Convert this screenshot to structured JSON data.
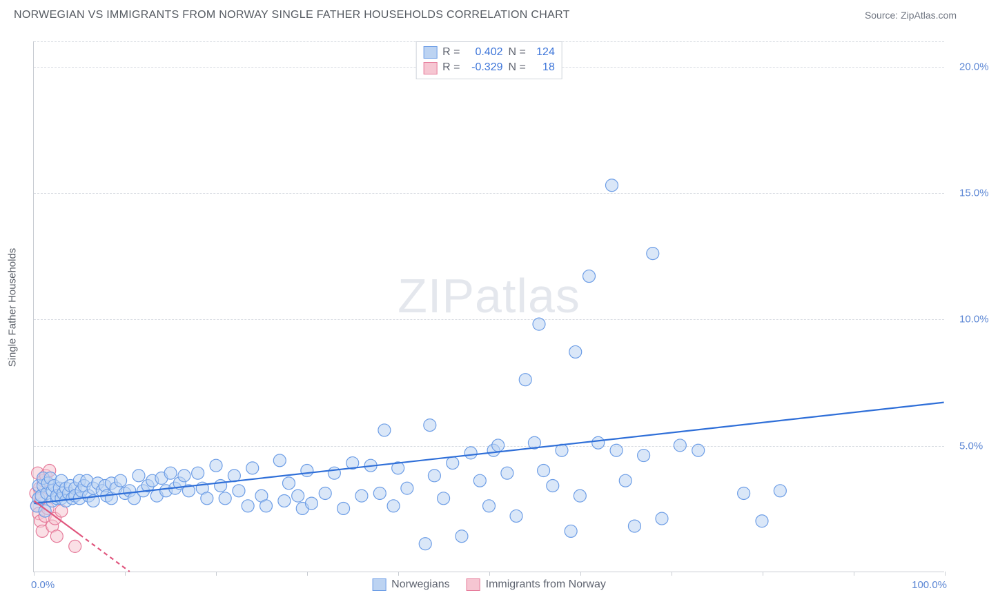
{
  "title": "NORWEGIAN VS IMMIGRANTS FROM NORWAY SINGLE FATHER HOUSEHOLDS CORRELATION CHART",
  "source": "Source: ZipAtlas.com",
  "y_axis_label": "Single Father Households",
  "watermark": {
    "zip": "ZIP",
    "atlas": "atlas"
  },
  "chart": {
    "type": "scatter",
    "background_color": "#ffffff",
    "grid_color": "#d8dce2",
    "axis_color": "#c8ccd2",
    "tick_color": "#5b86d4",
    "xlim": [
      0,
      100
    ],
    "ylim": [
      0,
      21
    ],
    "x_ticks": [
      0,
      10,
      20,
      30,
      40,
      50,
      60,
      70,
      80,
      90,
      100
    ],
    "y_ticks": [
      5,
      10,
      15,
      20
    ],
    "y_tick_labels": [
      "5.0%",
      "10.0%",
      "15.0%",
      "20.0%"
    ],
    "x_origin_label": "0.0%",
    "x_max_label": "100.0%",
    "marker_radius": 9,
    "marker_stroke_width": 1.2,
    "line_width": 2.2,
    "series": [
      {
        "id": "norwegians",
        "label": "Norwegians",
        "fill": "#bcd3f2",
        "stroke": "#6c9de6",
        "fill_opacity": 0.55,
        "r_value": "0.402",
        "n_value": "124",
        "trend": {
          "x1": 0,
          "y1": 2.7,
          "x2": 100,
          "y2": 6.7,
          "color": "#2f6fd8",
          "dash": null
        },
        "points": [
          [
            0.3,
            2.6
          ],
          [
            0.5,
            2.9
          ],
          [
            0.5,
            3.4
          ],
          [
            0.8,
            3.0
          ],
          [
            1.0,
            3.4
          ],
          [
            1.0,
            3.7
          ],
          [
            1.2,
            2.4
          ],
          [
            1.4,
            3.1
          ],
          [
            1.5,
            3.5
          ],
          [
            1.8,
            3.7
          ],
          [
            2.0,
            2.8
          ],
          [
            2.0,
            3.2
          ],
          [
            2.2,
            3.4
          ],
          [
            2.5,
            2.9
          ],
          [
            2.5,
            3.0
          ],
          [
            2.8,
            3.3
          ],
          [
            3.0,
            3.6
          ],
          [
            3.0,
            2.9
          ],
          [
            3.2,
            3.1
          ],
          [
            3.5,
            2.8
          ],
          [
            3.5,
            3.3
          ],
          [
            3.8,
            3.1
          ],
          [
            4.0,
            3.4
          ],
          [
            4.2,
            2.9
          ],
          [
            4.5,
            3.3
          ],
          [
            4.5,
            3.0
          ],
          [
            5.0,
            3.6
          ],
          [
            5.0,
            2.9
          ],
          [
            5.2,
            3.2
          ],
          [
            5.5,
            3.4
          ],
          [
            5.8,
            3.6
          ],
          [
            6.0,
            3.0
          ],
          [
            6.5,
            3.3
          ],
          [
            6.5,
            2.8
          ],
          [
            7.0,
            3.5
          ],
          [
            7.5,
            3.2
          ],
          [
            7.8,
            3.4
          ],
          [
            8.0,
            3.0
          ],
          [
            8.5,
            3.5
          ],
          [
            8.5,
            2.9
          ],
          [
            9.0,
            3.3
          ],
          [
            9.5,
            3.6
          ],
          [
            10.0,
            3.1
          ],
          [
            10.5,
            3.2
          ],
          [
            11.0,
            2.9
          ],
          [
            11.5,
            3.8
          ],
          [
            12.0,
            3.2
          ],
          [
            12.5,
            3.4
          ],
          [
            13.0,
            3.6
          ],
          [
            13.5,
            3.0
          ],
          [
            14.0,
            3.7
          ],
          [
            14.5,
            3.2
          ],
          [
            15.0,
            3.9
          ],
          [
            15.5,
            3.3
          ],
          [
            16.0,
            3.5
          ],
          [
            16.5,
            3.8
          ],
          [
            17.0,
            3.2
          ],
          [
            18.0,
            3.9
          ],
          [
            18.5,
            3.3
          ],
          [
            19.0,
            2.9
          ],
          [
            20.0,
            4.2
          ],
          [
            20.5,
            3.4
          ],
          [
            21.0,
            2.9
          ],
          [
            22.0,
            3.8
          ],
          [
            22.5,
            3.2
          ],
          [
            23.5,
            2.6
          ],
          [
            24.0,
            4.1
          ],
          [
            25.0,
            3.0
          ],
          [
            25.5,
            2.6
          ],
          [
            27.0,
            4.4
          ],
          [
            27.5,
            2.8
          ],
          [
            28.0,
            3.5
          ],
          [
            29.0,
            3.0
          ],
          [
            29.5,
            2.5
          ],
          [
            30.0,
            4.0
          ],
          [
            30.5,
            2.7
          ],
          [
            32.0,
            3.1
          ],
          [
            33.0,
            3.9
          ],
          [
            34.0,
            2.5
          ],
          [
            35.0,
            4.3
          ],
          [
            36.0,
            3.0
          ],
          [
            37.0,
            4.2
          ],
          [
            38.0,
            3.1
          ],
          [
            38.5,
            5.6
          ],
          [
            39.5,
            2.6
          ],
          [
            40.0,
            4.1
          ],
          [
            41.0,
            3.3
          ],
          [
            43.0,
            1.1
          ],
          [
            43.5,
            5.8
          ],
          [
            44.0,
            3.8
          ],
          [
            45.0,
            2.9
          ],
          [
            46.0,
            4.3
          ],
          [
            47.0,
            1.4
          ],
          [
            48.0,
            4.7
          ],
          [
            49.0,
            3.6
          ],
          [
            50.0,
            2.6
          ],
          [
            50.5,
            4.8
          ],
          [
            51.0,
            5.0
          ],
          [
            52.0,
            3.9
          ],
          [
            53.0,
            2.2
          ],
          [
            54.0,
            7.6
          ],
          [
            55.0,
            5.1
          ],
          [
            55.5,
            9.8
          ],
          [
            56.0,
            4.0
          ],
          [
            57.0,
            3.4
          ],
          [
            58.0,
            4.8
          ],
          [
            59.0,
            1.6
          ],
          [
            59.5,
            8.7
          ],
          [
            60.0,
            3.0
          ],
          [
            61.0,
            11.7
          ],
          [
            62.0,
            5.1
          ],
          [
            63.5,
            15.3
          ],
          [
            64.0,
            4.8
          ],
          [
            65.0,
            3.6
          ],
          [
            66.0,
            1.8
          ],
          [
            67.0,
            4.6
          ],
          [
            68.0,
            12.6
          ],
          [
            69.0,
            2.1
          ],
          [
            71.0,
            5.0
          ],
          [
            73.0,
            4.8
          ],
          [
            78.0,
            3.1
          ],
          [
            80.0,
            2.0
          ],
          [
            82.0,
            3.2
          ]
        ]
      },
      {
        "id": "immigrants",
        "label": "Immigrants from Norway",
        "fill": "#f6c6d2",
        "stroke": "#e67a9a",
        "fill_opacity": 0.55,
        "r_value": "-0.329",
        "n_value": "18",
        "trend": {
          "x1": 0,
          "y1": 2.8,
          "x2": 10.5,
          "y2": 0.0,
          "color": "#e0557d",
          "dash": "6,5"
        },
        "trend_solid_end_x": 5.0,
        "points": [
          [
            0.2,
            3.1
          ],
          [
            0.3,
            2.6
          ],
          [
            0.4,
            3.9
          ],
          [
            0.5,
            2.3
          ],
          [
            0.6,
            3.3
          ],
          [
            0.7,
            2.0
          ],
          [
            0.8,
            2.9
          ],
          [
            0.9,
            1.6
          ],
          [
            1.0,
            3.6
          ],
          [
            1.2,
            2.2
          ],
          [
            1.3,
            3.8
          ],
          [
            1.5,
            2.5
          ],
          [
            1.7,
            4.0
          ],
          [
            2.0,
            1.8
          ],
          [
            2.3,
            2.1
          ],
          [
            2.5,
            1.4
          ],
          [
            3.0,
            2.4
          ],
          [
            4.5,
            1.0
          ]
        ]
      }
    ],
    "stats_box": {
      "r_label": "R =",
      "n_label": "N ="
    },
    "legend_bottom": true
  }
}
